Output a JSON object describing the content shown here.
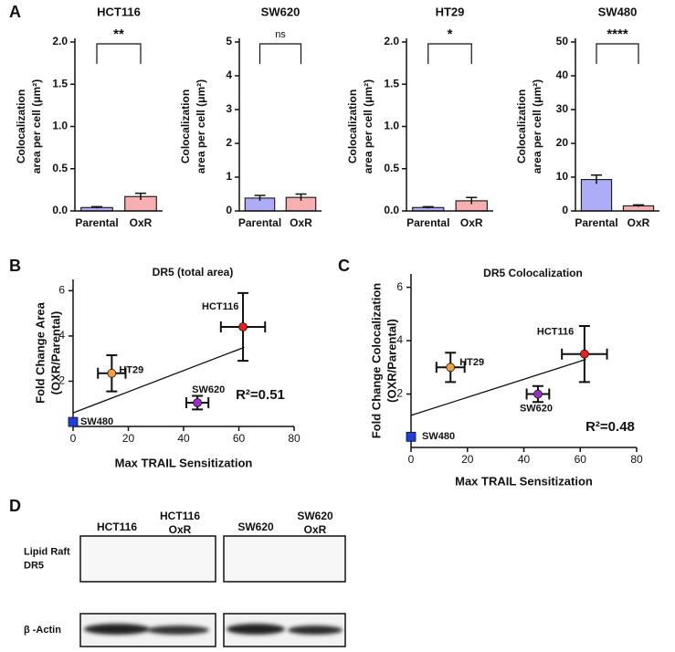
{
  "panels": [
    "A",
    "B",
    "C",
    "D"
  ],
  "chart_data": [
    {
      "type": "bar",
      "title": "HCT116",
      "ylabel": [
        "Colocalization",
        "area per cell (μm²)"
      ],
      "categories": [
        "Parental",
        "OxR"
      ],
      "values": [
        0.04,
        0.17
      ],
      "errors": [
        0.01,
        0.04
      ],
      "colors": [
        "#7676f2",
        "#f27a7a"
      ],
      "ylim": [
        0,
        2
      ],
      "yticks": [
        {
          "value": 0,
          "label": "0.0"
        },
        0.5,
        {
          "value": 1,
          "label": "1.0"
        },
        1.5,
        {
          "value": 2,
          "label": "2.0"
        }
      ],
      "significance": "**"
    },
    {
      "type": "bar",
      "title": "SW620",
      "ylabel": [
        "Colocalization",
        "area per cell (μm²)"
      ],
      "categories": [
        "Parental",
        "OxR"
      ],
      "values": [
        0.38,
        0.4
      ],
      "errors": [
        0.08,
        0.1
      ],
      "colors": [
        "#7676f2",
        "#f27a7a"
      ],
      "ylim": [
        0,
        5
      ],
      "yticks": [
        0,
        1,
        2,
        3,
        4,
        5
      ],
      "significance": "ns"
    },
    {
      "type": "bar",
      "title": "HT29",
      "ylabel": [
        "Colocalization",
        "area per cell (μm²)"
      ],
      "categories": [
        "Parental",
        "OxR"
      ],
      "values": [
        0.04,
        0.12
      ],
      "errors": [
        0.01,
        0.04
      ],
      "colors": [
        "#7676f2",
        "#f27a7a"
      ],
      "ylim": [
        0,
        2
      ],
      "yticks": [
        {
          "value": 0,
          "label": "0.0"
        },
        0.5,
        {
          "value": 1,
          "label": "1.0"
        },
        1.5,
        {
          "value": 2,
          "label": "2.0"
        }
      ],
      "significance": "*"
    },
    {
      "type": "bar",
      "title": "SW480",
      "ylabel": [
        "Colocalization",
        "area per cell (μm²)"
      ],
      "categories": [
        "Parental",
        "OxR"
      ],
      "values": [
        9.3,
        1.5
      ],
      "errors": [
        1.3,
        0.3
      ],
      "colors": [
        "#7676f2",
        "#f27a7a"
      ],
      "ylim": [
        0,
        50
      ],
      "yticks": [
        0,
        10,
        20,
        30,
        40,
        50
      ],
      "significance": "****"
    },
    {
      "type": "scatter",
      "title": "DR5 (total area)",
      "xlabel": "Max TRAIL Sensitization",
      "ylabel": [
        "Fold Change Area",
        "(OXR/Parental)"
      ],
      "xlim": [
        0,
        80
      ],
      "xticks": [
        0,
        20,
        40,
        60,
        80
      ],
      "ylim": [
        0,
        6.5
      ],
      "yticks": [
        2,
        4,
        6
      ],
      "points": [
        {
          "label": "HCT116",
          "x": 61.5,
          "y": 4.4,
          "xerr": 8,
          "yerr": 1.5,
          "color": "#e8201c",
          "marker": "circle"
        },
        {
          "label": "HT29",
          "x": 14,
          "y": 2.35,
          "xerr": 5,
          "yerr": 0.8,
          "color": "#f0a040",
          "marker": "circle"
        },
        {
          "label": "SW620",
          "x": 45,
          "y": 1.05,
          "xerr": 4,
          "yerr": 0.3,
          "color": "#9b2fc9",
          "marker": "circle"
        },
        {
          "label": "SW480",
          "x": 0,
          "y": 0.2,
          "color": "#1f3fd6",
          "marker": "square"
        }
      ],
      "fit": {
        "x": [
          0,
          62
        ],
        "y": [
          0.6,
          3.5
        ]
      },
      "annotation": "R²=0.51"
    },
    {
      "type": "scatter",
      "title": "DR5 Colocalization",
      "xlabel": "Max TRAIL Sensitization",
      "ylabel": [
        "Fold Change Colocalization",
        "(OXR/Parental)"
      ],
      "xlim": [
        0,
        80
      ],
      "xticks": [
        0,
        20,
        40,
        60,
        80
      ],
      "ylim": [
        0,
        6.5
      ],
      "yticks": [
        2,
        4,
        6
      ],
      "points": [
        {
          "label": "HCT116",
          "x": 61.5,
          "y": 3.5,
          "xerr": 8,
          "yerr": 1.05,
          "color": "#e8201c",
          "marker": "circle"
        },
        {
          "label": "HT29",
          "x": 14,
          "y": 3.0,
          "xerr": 5,
          "yerr": 0.55,
          "color": "#f0a040",
          "marker": "circle"
        },
        {
          "label": "SW620",
          "x": 45,
          "y": 2.0,
          "xerr": 4,
          "yerr": 0.3,
          "color": "#9b2fc9",
          "marker": "circle"
        },
        {
          "label": "SW480",
          "x": 0,
          "y": 0.4,
          "color": "#1f3fd6",
          "marker": "square"
        }
      ],
      "fit": {
        "x": [
          0,
          62
        ],
        "y": [
          1.2,
          3.3
        ]
      },
      "annotation": "R²=0.48"
    }
  ],
  "blot": {
    "lanes": [
      [
        "HCT116"
      ],
      [
        "HCT116",
        "OxR"
      ],
      [
        "SW620"
      ],
      [
        "SW620",
        "OxR"
      ]
    ],
    "rows": [
      [
        "Lipid Raft",
        "DR5"
      ],
      [
        "β -Actin"
      ]
    ]
  }
}
